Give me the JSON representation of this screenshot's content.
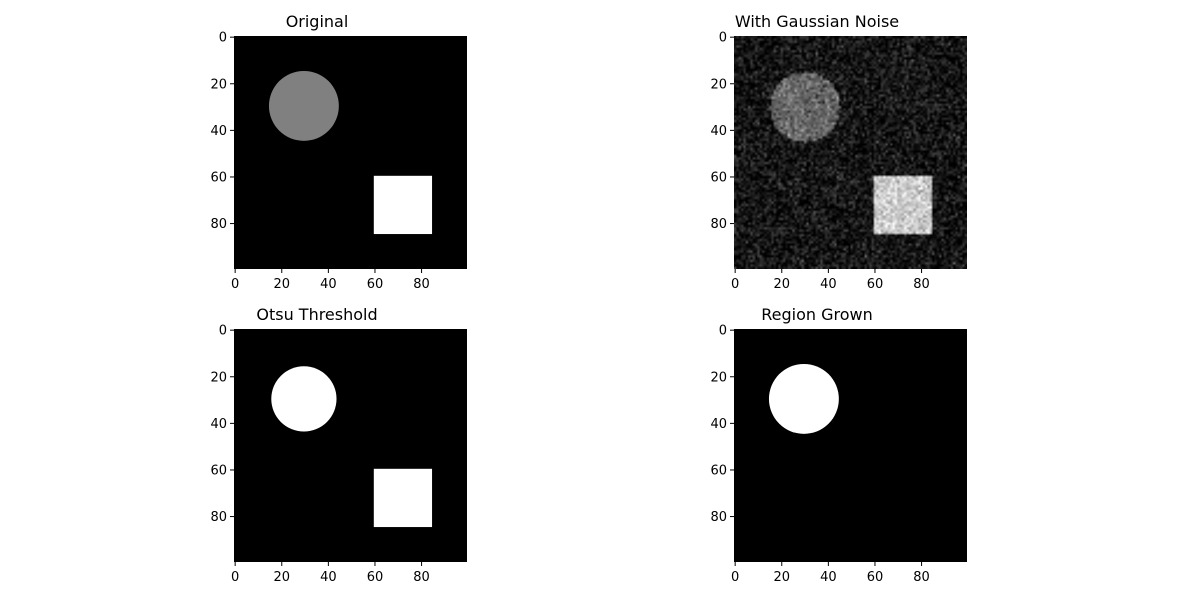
{
  "figure": {
    "panels": [
      {
        "title": "Original",
        "variant": "original"
      },
      {
        "title": "With Gaussian Noise",
        "variant": "noisy"
      },
      {
        "title": "Otsu Threshold",
        "variant": "otsu"
      },
      {
        "title": "Region Grown",
        "variant": "region"
      }
    ]
  },
  "chart_data": [
    {
      "type": "heatmap",
      "title": "Original",
      "image_size": [
        100,
        100
      ],
      "xticks": [
        0,
        20,
        40,
        60,
        80
      ],
      "yticks": [
        0,
        20,
        40,
        60,
        80
      ],
      "shapes": [
        {
          "shape": "circle",
          "center": [
            30,
            30
          ],
          "radius": 15,
          "intensity": 0.5
        },
        {
          "shape": "square",
          "x0": 60,
          "y0": 60,
          "x1": 85,
          "y1": 85,
          "intensity": 1.0
        }
      ],
      "colormap": "gray"
    },
    {
      "type": "heatmap",
      "title": "With Gaussian Noise",
      "image_size": [
        100,
        100
      ],
      "xticks": [
        0,
        20,
        40,
        60,
        80
      ],
      "yticks": [
        0,
        20,
        40,
        60,
        80
      ],
      "shapes": [
        {
          "shape": "circle",
          "center": [
            30,
            30
          ],
          "radius": 15,
          "intensity": 0.5
        },
        {
          "shape": "square",
          "x0": 60,
          "y0": 60,
          "x1": 85,
          "y1": 85,
          "intensity": 1.0
        }
      ],
      "noise": "gaussian",
      "colormap": "gray"
    },
    {
      "type": "heatmap",
      "title": "Otsu Threshold",
      "image_size": [
        100,
        100
      ],
      "xticks": [
        0,
        20,
        40,
        60,
        80
      ],
      "yticks": [
        0,
        20,
        40,
        60,
        80
      ],
      "shapes": [
        {
          "shape": "circle",
          "center": [
            30,
            30
          ],
          "radius": 14,
          "intensity": 1.0
        },
        {
          "shape": "square",
          "x0": 60,
          "y0": 60,
          "x1": 85,
          "y1": 85,
          "intensity": 1.0
        }
      ],
      "colormap": "gray"
    },
    {
      "type": "heatmap",
      "title": "Region Grown",
      "image_size": [
        100,
        100
      ],
      "xticks": [
        0,
        20,
        40,
        60,
        80
      ],
      "yticks": [
        0,
        20,
        40,
        60,
        80
      ],
      "shapes": [
        {
          "shape": "circle",
          "center": [
            30,
            30
          ],
          "radius": 15,
          "intensity": 1.0
        }
      ],
      "colormap": "gray"
    }
  ]
}
